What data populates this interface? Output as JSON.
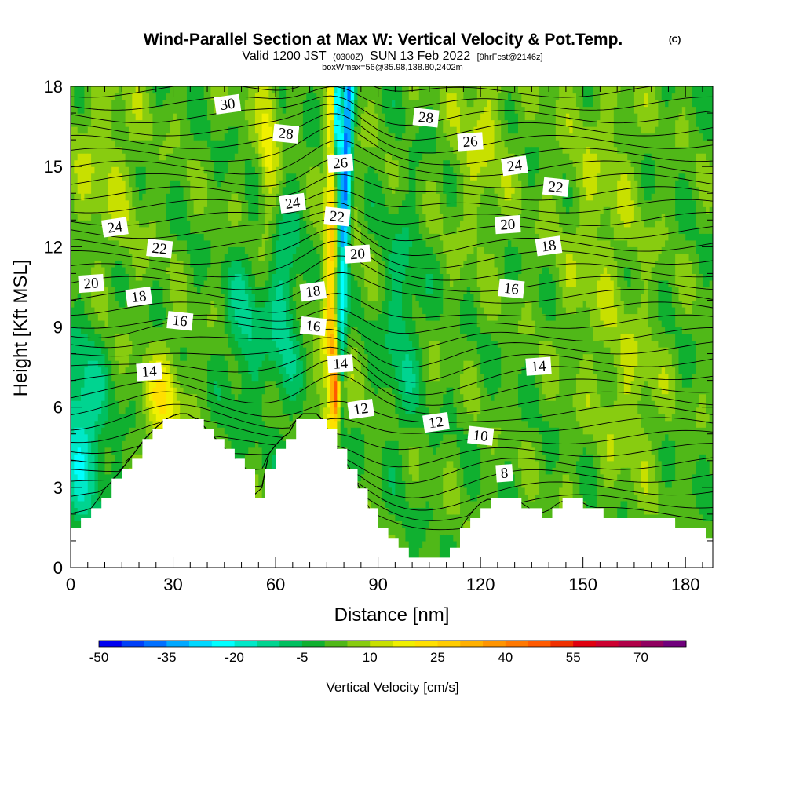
{
  "title": "Wind-Parallel Section at Max W: Vertical Velocity & Pot.Temp.",
  "copyright_mark": "(C)",
  "subtitle_parts": [
    "Valid 1200 JST",
    "(0300Z)",
    "SUN 13 Feb 2022",
    "[9hrFcst@2146z]"
  ],
  "info_line": "boxWmax=56@35.98,138.80,2402m",
  "chart_data": {
    "type": "heatmap",
    "xlabel": "Distance [nm]",
    "ylabel": "Height [Kft MSL]",
    "xlim": [
      0,
      188
    ],
    "ylim": [
      0,
      18
    ],
    "x_ticks": [
      "0",
      "30",
      "60",
      "90",
      "120",
      "150",
      "180"
    ],
    "y_ticks": [
      "0",
      "3",
      "6",
      "9",
      "12",
      "15",
      "18"
    ],
    "colorbar": {
      "label": "Vertical Velocity [cm/s]",
      "tick_labels": [
        "-50",
        "-35",
        "-20",
        "-5",
        "10",
        "25",
        "40",
        "55",
        "70"
      ],
      "levels": [
        -50,
        -45,
        -40,
        -35,
        -30,
        -25,
        -20,
        -15,
        -10,
        -5,
        0,
        5,
        10,
        15,
        20,
        25,
        30,
        35,
        40,
        45,
        50,
        55,
        60,
        65,
        70,
        75,
        80
      ],
      "colors": [
        "#0000f0",
        "#0040f8",
        "#0070ff",
        "#00a8ff",
        "#00d8ff",
        "#00ffff",
        "#00e8c8",
        "#00d490",
        "#00c060",
        "#10b030",
        "#50b818",
        "#88cc10",
        "#c8e000",
        "#f0f000",
        "#ffe000",
        "#ffcc00",
        "#ffb000",
        "#ff9400",
        "#ff7800",
        "#ff5a00",
        "#f03000",
        "#e00010",
        "#cc0030",
        "#b00048",
        "#900060",
        "#70007c"
      ]
    },
    "terrain_profile": {
      "x": [
        0,
        4,
        7,
        10,
        13,
        16,
        19,
        22,
        25,
        28,
        31,
        34,
        37,
        40,
        43,
        46,
        49,
        52,
        55,
        58,
        61,
        64,
        67,
        70,
        73,
        76,
        79,
        82,
        85,
        88,
        91,
        94,
        97,
        100,
        103,
        106,
        109,
        112,
        115,
        118,
        121,
        124,
        127,
        130,
        133,
        136,
        139,
        142,
        145,
        148,
        151,
        154,
        157,
        160,
        163,
        166,
        169,
        172,
        175,
        178,
        181,
        184,
        188
      ],
      "height_kft": [
        1.6,
        1.9,
        2.3,
        2.9,
        3.3,
        3.8,
        4.3,
        4.8,
        5.2,
        5.5,
        5.7,
        5.7,
        5.5,
        5.1,
        4.7,
        4.3,
        3.9,
        3.5,
        2.3,
        4.2,
        4.7,
        5.0,
        5.7,
        5.7,
        5.7,
        4.8,
        4.2,
        3.6,
        2.8,
        2.0,
        1.3,
        0.9,
        0.6,
        0.4,
        0.35,
        0.4,
        0.6,
        1.0,
        1.6,
        2.1,
        2.5,
        2.5,
        2.5,
        2.5,
        2.3,
        2.0,
        2.0,
        2.3,
        2.5,
        2.5,
        2.3,
        2.1,
        2.0,
        1.9,
        1.9,
        1.9,
        1.9,
        1.9,
        1.7,
        1.6,
        1.5,
        1.3,
        1.2
      ]
    },
    "contours": {
      "field": "potential temperature",
      "labels": [
        {
          "text": "30",
          "x": 46,
          "y": 17.3
        },
        {
          "text": "28",
          "x": 63,
          "y": 16.2
        },
        {
          "text": "26",
          "x": 79,
          "y": 15.1
        },
        {
          "text": "24",
          "x": 65,
          "y": 13.6
        },
        {
          "text": "22",
          "x": 78,
          "y": 13.1
        },
        {
          "text": "20",
          "x": 84,
          "y": 11.7
        },
        {
          "text": "18",
          "x": 71,
          "y": 10.3
        },
        {
          "text": "16",
          "x": 71,
          "y": 9.0
        },
        {
          "text": "14",
          "x": 79,
          "y": 7.6
        },
        {
          "text": "12",
          "x": 85,
          "y": 5.9
        },
        {
          "text": "28",
          "x": 104,
          "y": 16.8
        },
        {
          "text": "26",
          "x": 117,
          "y": 15.9
        },
        {
          "text": "24",
          "x": 130,
          "y": 15.0
        },
        {
          "text": "22",
          "x": 142,
          "y": 14.2
        },
        {
          "text": "20",
          "x": 128,
          "y": 12.8
        },
        {
          "text": "18",
          "x": 140,
          "y": 12.0
        },
        {
          "text": "16",
          "x": 129,
          "y": 10.4
        },
        {
          "text": "14",
          "x": 137,
          "y": 7.5
        },
        {
          "text": "12",
          "x": 107,
          "y": 5.4
        },
        {
          "text": "10",
          "x": 120,
          "y": 4.9
        },
        {
          "text": "8",
          "x": 127,
          "y": 3.5
        },
        {
          "text": "24",
          "x": 13,
          "y": 12.7
        },
        {
          "text": "22",
          "x": 26,
          "y": 11.9
        },
        {
          "text": "20",
          "x": 6,
          "y": 10.6
        },
        {
          "text": "18",
          "x": 20,
          "y": 10.1
        },
        {
          "text": "16",
          "x": 32,
          "y": 9.2
        },
        {
          "text": "14",
          "x": 23,
          "y": 7.3
        }
      ]
    }
  }
}
